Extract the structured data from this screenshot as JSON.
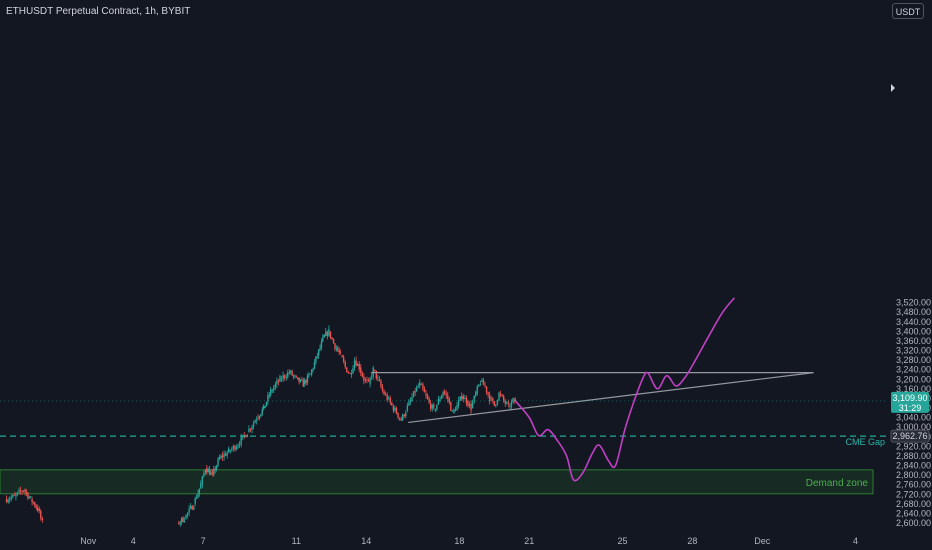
{
  "header": {
    "title": "ETHUSDT Perpetual Contract, 1h, BYBIT",
    "currency_button": "USDT"
  },
  "colors": {
    "background": "#131722",
    "up": "#26a69a",
    "down": "#ef5350",
    "projection": "#c03fc4",
    "pattern": "#9598a1",
    "cme": "#22ab94",
    "demand_fill": "#1b3b24",
    "demand_border": "#2e7d32",
    "price_badge": "#26a69a",
    "cme_badge": "#2a2e39"
  },
  "chart_data": {
    "type": "candlestick",
    "symbol": "ETHUSDT Perpetual Contract",
    "interval": "1h",
    "exchange": "BYBIT",
    "ylim": [
      2590,
      3560
    ],
    "y_ticks": [
      2600,
      2640,
      2680,
      2720,
      2760,
      2800,
      2840,
      2880,
      2920,
      2960,
      3000,
      3040,
      3080,
      3120,
      3160,
      3200,
      3240,
      3280,
      3320,
      3360,
      3400,
      3440,
      3480,
      3520
    ],
    "y_tick_labels": [
      "2,600.00",
      "2,640.00",
      "2,680.00",
      "2,720.00",
      "2,760.00",
      "2,800.00",
      "2,840.00",
      "2,880.00",
      "2,920.00",
      "2,960.00",
      "3,000.00",
      "3,040.00",
      "3,080.00",
      "3,120.00",
      "3,160.00",
      "3,200.00",
      "3,240.00",
      "3,280.00",
      "3,320.00",
      "3,360.00",
      "3,400.00",
      "3,440.00",
      "3,480.00",
      "3,520.00"
    ],
    "x_ticks": [
      {
        "label": "Nov",
        "day": 1
      },
      {
        "label": "4",
        "day": 4
      },
      {
        "label": "7",
        "day": 7
      },
      {
        "label": "11",
        "day": 11
      },
      {
        "label": "14",
        "day": 14
      },
      {
        "label": "18",
        "day": 18
      },
      {
        "label": "21",
        "day": 21
      },
      {
        "label": "25",
        "day": 25
      },
      {
        "label": "28",
        "day": 28
      },
      {
        "label": "Dec",
        "day": 31
      },
      {
        "label": "4",
        "day": 35
      }
    ],
    "price_path": [
      [
        -1.5,
        2700
      ],
      [
        -1.1,
        2710
      ],
      [
        -0.7,
        2740
      ],
      [
        -0.4,
        2700
      ],
      [
        -0.1,
        2660
      ],
      [
        0.1,
        2600
      ],
      [
        5.9,
        2600
      ],
      [
        6.2,
        2620
      ],
      [
        6.6,
        2680
      ],
      [
        6.9,
        2760
      ],
      [
        7.1,
        2830
      ],
      [
        7.4,
        2800
      ],
      [
        7.7,
        2870
      ],
      [
        8.1,
        2900
      ],
      [
        8.5,
        2930
      ],
      [
        8.9,
        2980
      ],
      [
        9.3,
        3040
      ],
      [
        9.6,
        3080
      ],
      [
        9.9,
        3150
      ],
      [
        10.3,
        3200
      ],
      [
        10.7,
        3230
      ],
      [
        11.0,
        3200
      ],
      [
        11.3,
        3180
      ],
      [
        11.6,
        3220
      ],
      [
        11.9,
        3300
      ],
      [
        12.2,
        3380
      ],
      [
        12.4,
        3400
      ],
      [
        12.6,
        3350
      ],
      [
        12.9,
        3300
      ],
      [
        13.1,
        3250
      ],
      [
        13.3,
        3220
      ],
      [
        13.5,
        3280
      ],
      [
        13.7,
        3250
      ],
      [
        13.9,
        3200
      ],
      [
        14.1,
        3180
      ],
      [
        14.3,
        3240
      ],
      [
        14.5,
        3200
      ],
      [
        14.7,
        3150
      ],
      [
        14.9,
        3120
      ],
      [
        15.1,
        3090
      ],
      [
        15.3,
        3060
      ],
      [
        15.5,
        3030
      ],
      [
        15.7,
        3070
      ],
      [
        15.9,
        3110
      ],
      [
        16.1,
        3150
      ],
      [
        16.3,
        3180
      ],
      [
        16.5,
        3140
      ],
      [
        16.7,
        3100
      ],
      [
        16.9,
        3070
      ],
      [
        17.1,
        3110
      ],
      [
        17.3,
        3150
      ],
      [
        17.5,
        3120
      ],
      [
        17.7,
        3060
      ],
      [
        17.9,
        3090
      ],
      [
        18.1,
        3130
      ],
      [
        18.3,
        3110
      ],
      [
        18.5,
        3080
      ],
      [
        18.7,
        3140
      ],
      [
        18.9,
        3190
      ],
      [
        19.1,
        3170
      ],
      [
        19.3,
        3120
      ],
      [
        19.5,
        3090
      ],
      [
        19.7,
        3140
      ],
      [
        19.9,
        3110
      ],
      [
        20.1,
        3085
      ],
      [
        20.3,
        3110
      ],
      [
        20.4,
        3110
      ]
    ],
    "current_price": {
      "value": 3109.9,
      "label": "3,109.90",
      "countdown": "31:29"
    },
    "triangle": {
      "resistance": {
        "from": [
          14.2,
          3228
        ],
        "to": [
          33.2,
          3228
        ]
      },
      "support": {
        "from": [
          15.8,
          3020
        ],
        "to": [
          33.2,
          3228
        ]
      }
    },
    "projection_path": [
      [
        20.4,
        3110
      ],
      [
        21.0,
        3040
      ],
      [
        21.4,
        2965
      ],
      [
        21.8,
        2990
      ],
      [
        22.2,
        2945
      ],
      [
        22.6,
        2880
      ],
      [
        22.9,
        2780
      ],
      [
        23.3,
        2810
      ],
      [
        23.7,
        2890
      ],
      [
        24.0,
        2925
      ],
      [
        24.4,
        2860
      ],
      [
        24.7,
        2840
      ],
      [
        25.1,
        2990
      ],
      [
        25.5,
        3110
      ],
      [
        25.9,
        3210
      ],
      [
        26.1,
        3225
      ],
      [
        26.5,
        3160
      ],
      [
        26.9,
        3215
      ],
      [
        27.3,
        3172
      ],
      [
        27.7,
        3210
      ],
      [
        28.1,
        3275
      ],
      [
        28.7,
        3380
      ],
      [
        29.3,
        3480
      ],
      [
        29.8,
        3540
      ]
    ],
    "levels": [
      {
        "name": "CME Gap",
        "value": 2962.76,
        "label": "2,962.76",
        "style": "dashed"
      }
    ],
    "zones": [
      {
        "name": "Demand zone",
        "from": 2722,
        "to": 2822
      }
    ]
  }
}
